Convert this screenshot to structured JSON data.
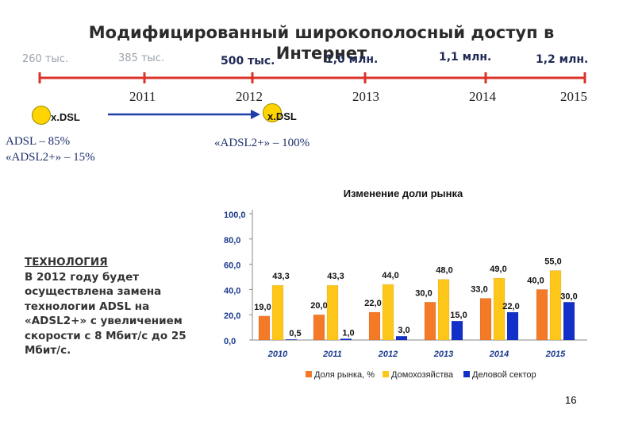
{
  "slide": {
    "title": "Модифицированный широкополосный доступ в Интернет",
    "timeline": {
      "values": [
        {
          "text": "260 тыс.",
          "style": "light"
        },
        {
          "text": "385 тыс.",
          "style": "light"
        },
        {
          "text": "500 тыс.",
          "style": "dark"
        },
        {
          "text": "1,0 млн.",
          "style": "dark"
        },
        {
          "text": "1,1 млн.",
          "style": "dark"
        },
        {
          "text": "1,2 млн.",
          "style": "dark"
        }
      ],
      "years": [
        "2011",
        "2012",
        "2013",
        "2014",
        "2015"
      ]
    },
    "left_tech": "x.DSL",
    "right_tech": "x.DSL",
    "left_shares": [
      "ADSL – 85%",
      "«ADSL2+» – 15%"
    ],
    "right_share": "«ADSL2+» – 100%",
    "tech_box": {
      "heading": "ТЕХНОЛОГИЯ",
      "body": "В 2012 году будет осуществлена замена технологии ADSL на «ADSL2+» с увеличением скорости с 8 Мбит/с до 25 Мбит/с."
    },
    "page_number": "16",
    "colors": {
      "timeline": "#d9342b",
      "arrow": "#1f3ea8",
      "circle": "#ffd400"
    }
  },
  "chart_data": {
    "type": "bar",
    "title": "Изменение доли рынка",
    "categories": [
      "2010",
      "2011",
      "2012",
      "2013",
      "2014",
      "2015"
    ],
    "ytick_labels": [
      "0,0",
      "20,0",
      "40,0",
      "60,0",
      "80,0",
      "100,0"
    ],
    "ylim": [
      0,
      100
    ],
    "grid": false,
    "legend_position": "bottom",
    "series": [
      {
        "name": "Доля рынка, %",
        "color": "#f47a28",
        "values": [
          19.0,
          20.0,
          22.0,
          30.0,
          33.0,
          40.0
        ],
        "labels": [
          "19,0",
          "20,0",
          "22,0",
          "30,0",
          "33,0",
          "40,0"
        ]
      },
      {
        "name": "Домохозяйства",
        "color": "#ffc61a",
        "values": [
          43.3,
          43.3,
          44.0,
          48.0,
          49.0,
          55.0
        ],
        "labels": [
          "43,3",
          "43,3",
          "44,0",
          "48,0",
          "49,0",
          "55,0"
        ]
      },
      {
        "name": "Деловой сектор",
        "color": "#1230c8",
        "values": [
          0.5,
          1.0,
          3.0,
          15.0,
          22.0,
          30.0
        ],
        "labels": [
          "0,5",
          "1,0",
          "3,0",
          "15,0",
          "22,0",
          "30,0"
        ]
      }
    ]
  }
}
